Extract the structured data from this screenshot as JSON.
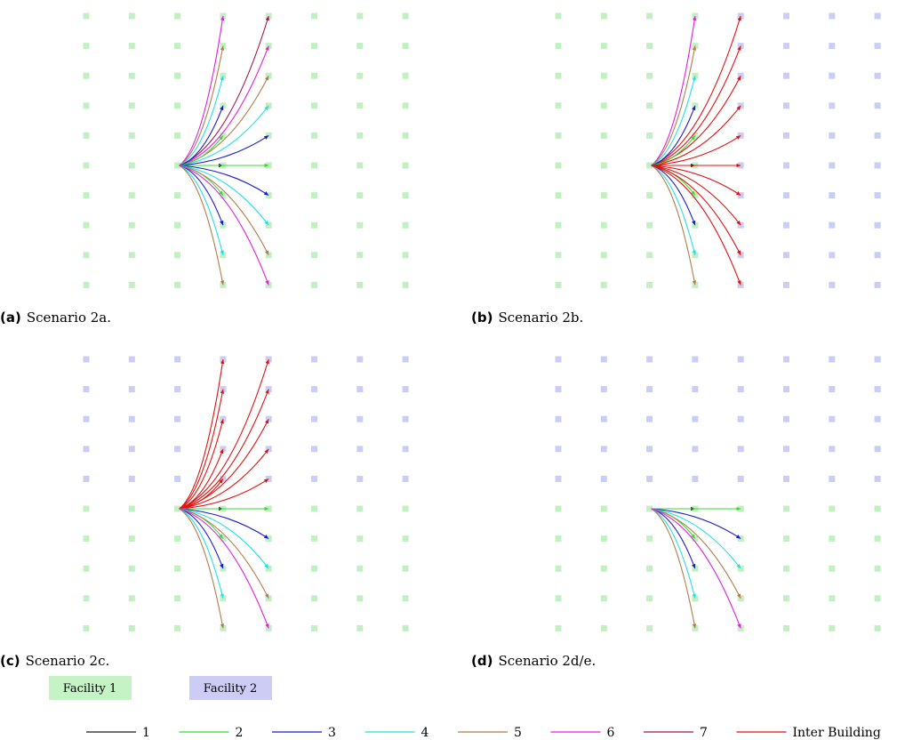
{
  "colors": {
    "facility1": "#c6f3c6",
    "facility2": "#ccccf5",
    "grid_f1": "#c3f0c3",
    "grid_f2": "#cccdf4",
    "hop_1": "#1a1a1a",
    "hop_2": "#33dd33",
    "hop_3": "#1a1acc",
    "hop_4": "#22e0e0",
    "hop_5": "#b07c4a",
    "hop_6": "#e01ee0",
    "hop_7": "#a01850",
    "inter_building": "#e01010"
  },
  "panels": [
    {
      "id": "a",
      "caption_label": "(a)",
      "caption_text": "Scenario 2a.",
      "grid_colors": [
        "f1",
        "f1",
        "f1",
        "f1",
        "f1",
        "f1",
        "f1",
        "f1"
      ],
      "source": [
        2,
        5
      ],
      "arrows": [
        {
          "to": [
            3,
            0
          ],
          "hop": "6"
        },
        {
          "to": [
            4,
            0
          ],
          "hop": "7"
        },
        {
          "to": [
            3,
            1
          ],
          "hop": "5"
        },
        {
          "to": [
            4,
            1
          ],
          "hop": "6"
        },
        {
          "to": [
            3,
            2
          ],
          "hop": "4"
        },
        {
          "to": [
            4,
            2
          ],
          "hop": "5"
        },
        {
          "to": [
            3,
            3
          ],
          "hop": "3"
        },
        {
          "to": [
            4,
            3
          ],
          "hop": "4"
        },
        {
          "to": [
            3,
            4
          ],
          "hop": "2"
        },
        {
          "to": [
            4,
            4
          ],
          "hop": "3"
        },
        {
          "to": [
            3,
            5
          ],
          "hop": "1"
        },
        {
          "to": [
            4,
            5
          ],
          "hop": "2"
        },
        {
          "to": [
            3,
            6
          ],
          "hop": "2"
        },
        {
          "to": [
            4,
            6
          ],
          "hop": "3"
        },
        {
          "to": [
            3,
            7
          ],
          "hop": "3"
        },
        {
          "to": [
            4,
            7
          ],
          "hop": "4"
        },
        {
          "to": [
            3,
            8
          ],
          "hop": "4"
        },
        {
          "to": [
            4,
            8
          ],
          "hop": "5"
        },
        {
          "to": [
            3,
            9
          ],
          "hop": "5"
        },
        {
          "to": [
            4,
            9
          ],
          "hop": "6"
        }
      ]
    },
    {
      "id": "b",
      "caption_label": "(b)",
      "caption_text": "Scenario 2b.",
      "grid_colors": [
        "f1",
        "f1",
        "f1",
        "f1",
        "f2",
        "f2",
        "f2",
        "f2"
      ],
      "source": [
        2,
        5
      ],
      "arrows": [
        {
          "to": [
            3,
            0
          ],
          "hop": "6"
        },
        {
          "to": [
            4,
            0
          ],
          "hop": "inter_building"
        },
        {
          "to": [
            3,
            1
          ],
          "hop": "5"
        },
        {
          "to": [
            4,
            1
          ],
          "hop": "inter_building"
        },
        {
          "to": [
            3,
            2
          ],
          "hop": "4"
        },
        {
          "to": [
            4,
            2
          ],
          "hop": "inter_building"
        },
        {
          "to": [
            3,
            3
          ],
          "hop": "3"
        },
        {
          "to": [
            4,
            3
          ],
          "hop": "inter_building"
        },
        {
          "to": [
            3,
            4
          ],
          "hop": "2"
        },
        {
          "to": [
            4,
            4
          ],
          "hop": "inter_building"
        },
        {
          "to": [
            3,
            5
          ],
          "hop": "1"
        },
        {
          "to": [
            4,
            5
          ],
          "hop": "inter_building"
        },
        {
          "to": [
            3,
            6
          ],
          "hop": "2"
        },
        {
          "to": [
            4,
            6
          ],
          "hop": "inter_building"
        },
        {
          "to": [
            3,
            7
          ],
          "hop": "3"
        },
        {
          "to": [
            4,
            7
          ],
          "hop": "inter_building"
        },
        {
          "to": [
            3,
            8
          ],
          "hop": "4"
        },
        {
          "to": [
            4,
            8
          ],
          "hop": "inter_building"
        },
        {
          "to": [
            3,
            9
          ],
          "hop": "5"
        },
        {
          "to": [
            4,
            9
          ],
          "hop": "inter_building"
        }
      ]
    },
    {
      "id": "c",
      "caption_label": "(c)",
      "caption_text": "Scenario 2c.",
      "grid_colors": [
        "f2",
        "f2",
        "f2",
        "f2",
        "f2",
        "f2",
        "f2",
        "f2"
      ],
      "grid_lower": [
        "f1",
        "f1",
        "f1",
        "f1",
        "f1",
        "f1",
        "f1",
        "f1"
      ],
      "split_row": 5,
      "source": [
        2,
        5
      ],
      "arrows": [
        {
          "to": [
            3,
            0
          ],
          "hop": "inter_building"
        },
        {
          "to": [
            4,
            0
          ],
          "hop": "inter_building"
        },
        {
          "to": [
            3,
            1
          ],
          "hop": "inter_building"
        },
        {
          "to": [
            4,
            1
          ],
          "hop": "inter_building"
        },
        {
          "to": [
            3,
            2
          ],
          "hop": "inter_building"
        },
        {
          "to": [
            4,
            2
          ],
          "hop": "inter_building"
        },
        {
          "to": [
            3,
            3
          ],
          "hop": "inter_building"
        },
        {
          "to": [
            4,
            3
          ],
          "hop": "inter_building"
        },
        {
          "to": [
            3,
            4
          ],
          "hop": "inter_building"
        },
        {
          "to": [
            4,
            4
          ],
          "hop": "inter_building"
        },
        {
          "to": [
            3,
            5
          ],
          "hop": "1"
        },
        {
          "to": [
            4,
            5
          ],
          "hop": "2"
        },
        {
          "to": [
            3,
            6
          ],
          "hop": "2"
        },
        {
          "to": [
            4,
            6
          ],
          "hop": "3"
        },
        {
          "to": [
            3,
            7
          ],
          "hop": "3"
        },
        {
          "to": [
            4,
            7
          ],
          "hop": "4"
        },
        {
          "to": [
            3,
            8
          ],
          "hop": "4"
        },
        {
          "to": [
            4,
            8
          ],
          "hop": "5"
        },
        {
          "to": [
            3,
            9
          ],
          "hop": "5"
        },
        {
          "to": [
            4,
            9
          ],
          "hop": "6"
        }
      ]
    },
    {
      "id": "d",
      "caption_label": "(d)",
      "caption_text": "Scenario 2d/e.",
      "grid_colors": [
        "f2",
        "f2",
        "f2",
        "f2",
        "f2",
        "f2",
        "f2",
        "f2"
      ],
      "grid_lower": [
        "f1",
        "f1",
        "f1",
        "f1",
        "f1",
        "f1",
        "f1",
        "f1"
      ],
      "split_row": 5,
      "source": [
        2,
        5
      ],
      "arrows": [
        {
          "to": [
            3,
            5
          ],
          "hop": "1"
        },
        {
          "to": [
            4,
            5
          ],
          "hop": "2"
        },
        {
          "to": [
            3,
            6
          ],
          "hop": "2"
        },
        {
          "to": [
            4,
            6
          ],
          "hop": "3"
        },
        {
          "to": [
            3,
            7
          ],
          "hop": "3"
        },
        {
          "to": [
            4,
            7
          ],
          "hop": "4"
        },
        {
          "to": [
            3,
            8
          ],
          "hop": "4"
        },
        {
          "to": [
            4,
            8
          ],
          "hop": "5"
        },
        {
          "to": [
            3,
            9
          ],
          "hop": "5"
        },
        {
          "to": [
            4,
            9
          ],
          "hop": "6"
        }
      ]
    }
  ],
  "facility_legend": [
    {
      "label": "Facility 1",
      "color_key": "facility1"
    },
    {
      "label": "Facility 2",
      "color_key": "facility2"
    }
  ],
  "hop_legend": [
    {
      "label": "1",
      "color_key": "hop_1"
    },
    {
      "label": "2",
      "color_key": "hop_2"
    },
    {
      "label": "3",
      "color_key": "hop_3"
    },
    {
      "label": "4",
      "color_key": "hop_4"
    },
    {
      "label": "5",
      "color_key": "hop_5"
    },
    {
      "label": "6",
      "color_key": "hop_6"
    },
    {
      "label": "7",
      "color_key": "hop_7"
    },
    {
      "label": "Inter Building",
      "color_key": "inter_building"
    }
  ]
}
